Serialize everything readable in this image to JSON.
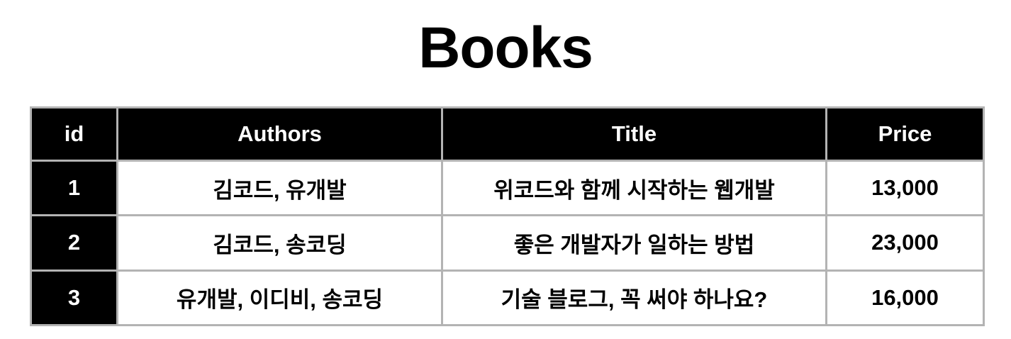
{
  "page": {
    "title": "Books"
  },
  "table": {
    "headers": [
      "id",
      "Authors",
      "Title",
      "Price"
    ],
    "rows": [
      {
        "id": "1",
        "authors": "김코드, 유개발",
        "title": "위코드와 함께 시작하는 웹개발",
        "price": "13,000"
      },
      {
        "id": "2",
        "authors": "김코드, 송코딩",
        "title": "좋은 개발자가 일하는 방법",
        "price": "23,000"
      },
      {
        "id": "3",
        "authors": "유개발, 이디비, 송코딩",
        "title": "기술 블로그, 꼭 써야 하나요?",
        "price": "16,000"
      }
    ]
  },
  "colors": {
    "header_bg": "#000000",
    "header_text": "#ffffff",
    "border": "#b3b3b3"
  }
}
